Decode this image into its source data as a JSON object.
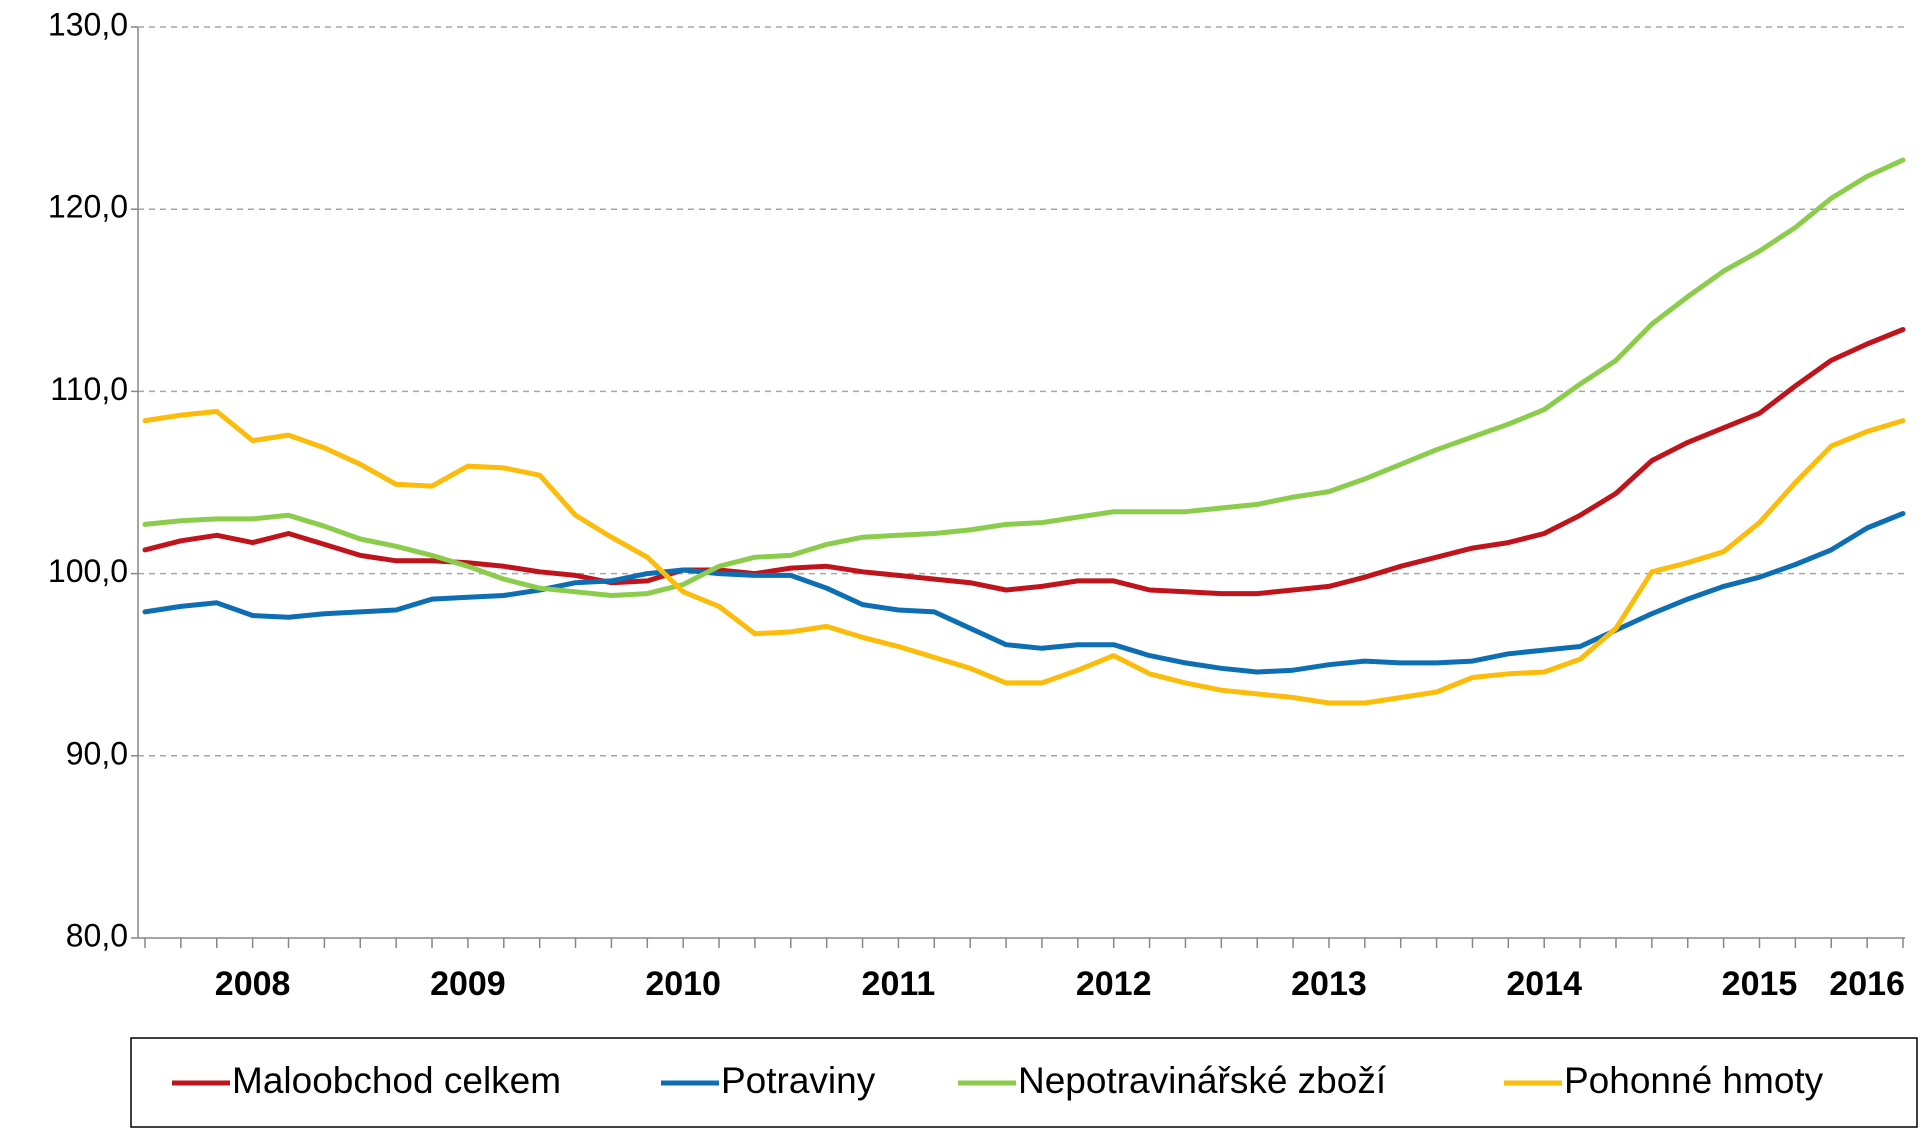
{
  "chart_data": {
    "type": "line",
    "categories": [
      null,
      null,
      null,
      "2008",
      null,
      null,
      null,
      null,
      null,
      "2009",
      null,
      null,
      null,
      null,
      null,
      "2010",
      null,
      null,
      null,
      null,
      null,
      "2011",
      null,
      null,
      null,
      null,
      null,
      "2012",
      null,
      null,
      null,
      null,
      null,
      "2013",
      null,
      null,
      null,
      null,
      null,
      "2014",
      null,
      null,
      null,
      null,
      null,
      "2015",
      null,
      null,
      "2016",
      null
    ],
    "series": [
      {
        "name": "Maloobchod celkem",
        "color": "#c0141c",
        "values": [
          101.3,
          101.8,
          102.1,
          101.7,
          102.2,
          101.6,
          101.0,
          100.7,
          100.7,
          100.6,
          100.4,
          100.1,
          99.9,
          99.5,
          99.6,
          100.2,
          100.2,
          100.0,
          100.3,
          100.4,
          100.1,
          99.9,
          99.7,
          99.5,
          99.1,
          99.3,
          99.6,
          99.6,
          99.1,
          99.0,
          98.9,
          98.9,
          99.1,
          99.3,
          99.8,
          100.4,
          100.9,
          101.4,
          101.7,
          102.2,
          103.2,
          104.4,
          106.2,
          107.2,
          108.0,
          108.8,
          110.3,
          111.7,
          112.6,
          113.4
        ]
      },
      {
        "name": "Potraviny",
        "color": "#0e6eb4",
        "values": [
          97.9,
          98.2,
          98.4,
          97.7,
          97.6,
          97.8,
          97.9,
          98.0,
          98.6,
          98.7,
          98.8,
          99.1,
          99.5,
          99.6,
          100.0,
          100.2,
          100.0,
          99.9,
          99.9,
          99.2,
          98.3,
          98.0,
          97.9,
          97.0,
          96.1,
          95.9,
          96.1,
          96.1,
          95.5,
          95.1,
          94.8,
          94.6,
          94.7,
          95.0,
          95.2,
          95.1,
          95.1,
          95.2,
          95.6,
          95.8,
          96.0,
          96.9,
          97.8,
          98.6,
          99.3,
          99.8,
          100.5,
          101.3,
          102.5,
          103.3
        ]
      },
      {
        "name": "Nepotravinářské zboží",
        "color": "#8ccc4c",
        "values": [
          102.7,
          102.9,
          103.0,
          103.0,
          103.2,
          102.6,
          101.9,
          101.5,
          101.0,
          100.4,
          99.7,
          99.2,
          99.0,
          98.8,
          98.9,
          99.4,
          100.4,
          100.9,
          101.0,
          101.6,
          102.0,
          102.1,
          102.2,
          102.4,
          102.7,
          102.8,
          103.1,
          103.4,
          103.4,
          103.4,
          103.6,
          103.8,
          104.2,
          104.5,
          105.2,
          106.0,
          106.8,
          107.5,
          108.2,
          109.0,
          110.4,
          111.7,
          113.7,
          115.2,
          116.6,
          117.7,
          119.0,
          120.6,
          121.8,
          122.7
        ]
      },
      {
        "name": "Pohonné hmoty",
        "color": "#fcbc0c",
        "values": [
          108.4,
          108.7,
          108.9,
          107.3,
          107.6,
          106.9,
          106.0,
          104.9,
          104.8,
          105.9,
          105.8,
          105.4,
          103.2,
          102.0,
          100.9,
          99.0,
          98.2,
          96.7,
          96.8,
          97.1,
          96.5,
          96.0,
          95.4,
          94.8,
          94.0,
          94.0,
          94.7,
          95.5,
          94.5,
          94.0,
          93.6,
          93.4,
          93.2,
          92.9,
          92.9,
          93.2,
          93.5,
          94.3,
          94.5,
          94.6,
          95.3,
          97.0,
          100.1,
          100.6,
          101.2,
          102.8,
          105.0,
          107.0,
          107.8,
          108.4
        ]
      }
    ],
    "ylim": [
      80,
      130
    ],
    "yticks": [
      {
        "value": 80,
        "label": "80,0"
      },
      {
        "value": 90,
        "label": "90,0"
      },
      {
        "value": 100,
        "label": "100,0"
      },
      {
        "value": 110,
        "label": "110,0"
      },
      {
        "value": 120,
        "label": "120,0"
      },
      {
        "value": 130,
        "label": "130,0"
      }
    ],
    "grid": true,
    "legend": "bottom"
  }
}
